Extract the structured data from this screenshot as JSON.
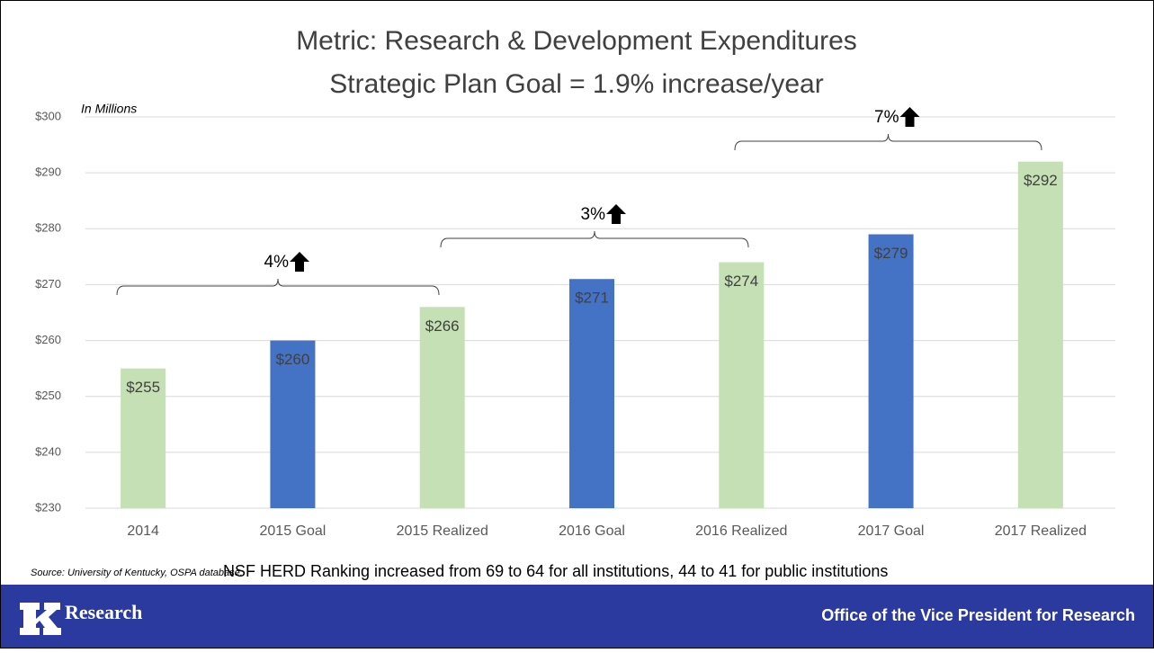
{
  "chart_data": {
    "type": "bar",
    "title": "Metric: Research & Development Expenditures",
    "subtitle": "Strategic Plan Goal = 1.9% increase/year",
    "y_label": "In Millions",
    "categories": [
      "2014",
      "2015 Goal",
      "2015 Realized",
      "2016 Goal",
      "2016 Realized",
      "2017 Goal",
      "2017 Realized"
    ],
    "values": [
      255,
      260,
      266,
      271,
      274,
      279,
      292
    ],
    "value_labels": [
      "$255",
      "$260",
      "$266",
      "$271",
      "$274",
      "$279",
      "$292"
    ],
    "colors": [
      "#c5e0b4",
      "#4472c4",
      "#c5e0b4",
      "#4472c4",
      "#c5e0b4",
      "#4472c4",
      "#c5e0b4"
    ],
    "ylim": [
      230,
      300
    ],
    "yticks": [
      {
        "value": 230,
        "label": "$230"
      },
      {
        "value": 240,
        "label": "$240"
      },
      {
        "value": 250,
        "label": "$250"
      },
      {
        "value": 260,
        "label": "$260"
      },
      {
        "value": 270,
        "label": "$270"
      },
      {
        "value": 280,
        "label": "$280"
      },
      {
        "value": 290,
        "label": "$290"
      },
      {
        "value": 300,
        "label": "$300"
      }
    ],
    "grid": true,
    "annotations": [
      "4%",
      "3%",
      "7%"
    ],
    "source": "Source: University of Kentucky, OSPA database.",
    "note": "NSF HERD Ranking increased from 69 to 64 for all institutions, 44 to 41 for public institutions"
  },
  "footer": {
    "logo": "Research",
    "office": "Office of the Vice President for Research"
  }
}
